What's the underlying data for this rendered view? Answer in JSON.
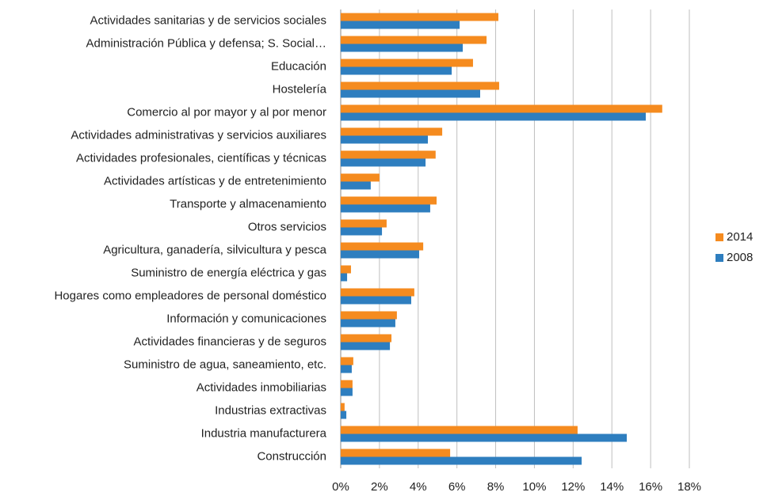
{
  "chart_data": {
    "type": "bar",
    "orientation": "horizontal",
    "categories": [
      "Actividades sanitarias y de servicios sociales",
      "Administración Pública y defensa; S. Social…",
      "Educación",
      "Hostelería",
      "Comercio al por mayor y al por menor",
      "Actividades administrativas y servicios auxiliares",
      "Actividades profesionales, científicas y técnicas",
      "Actividades artísticas y de entretenimiento",
      "Transporte y almacenamiento",
      "Otros servicios",
      "Agricultura, ganadería, silvicultura y pesca",
      "Suministro de energía eléctrica y gas",
      "Hogares como empleadores de personal doméstico",
      "Información y comunicaciones",
      "Actividades financieras y de seguros",
      "Suministro de agua, saneamiento, etc.",
      "Actividades inmobiliarias",
      "Industrias extractivas",
      "Industria manufacturera",
      "Construcción"
    ],
    "series": [
      {
        "name": "2014",
        "color": "#f58b1f",
        "values": [
          8.14,
          7.53,
          6.83,
          8.18,
          16.6,
          5.24,
          4.9,
          2.0,
          4.95,
          2.37,
          4.26,
          0.53,
          3.8,
          2.9,
          2.62,
          0.65,
          0.61,
          0.2,
          12.23,
          5.65
        ]
      },
      {
        "name": "2008",
        "color": "#2e7ebf",
        "values": [
          6.14,
          6.3,
          5.73,
          7.2,
          15.75,
          4.5,
          4.38,
          1.55,
          4.62,
          2.13,
          4.05,
          0.33,
          3.64,
          2.82,
          2.54,
          0.57,
          0.61,
          0.29,
          14.77,
          12.44
        ]
      }
    ],
    "xlim": [
      0,
      18
    ],
    "xticks": [
      {
        "value": 0,
        "label": "0%"
      },
      {
        "value": 2,
        "label": "2%"
      },
      {
        "value": 4,
        "label": "4%"
      },
      {
        "value": 6,
        "label": "6%"
      },
      {
        "value": 8,
        "label": "8%"
      },
      {
        "value": 10,
        "label": "10%"
      },
      {
        "value": 12,
        "label": "12%"
      },
      {
        "value": 14,
        "label": "14%"
      },
      {
        "value": 16,
        "label": "16%"
      },
      {
        "value": 18,
        "label": "18%"
      }
    ],
    "grid": true,
    "legend": "right"
  }
}
